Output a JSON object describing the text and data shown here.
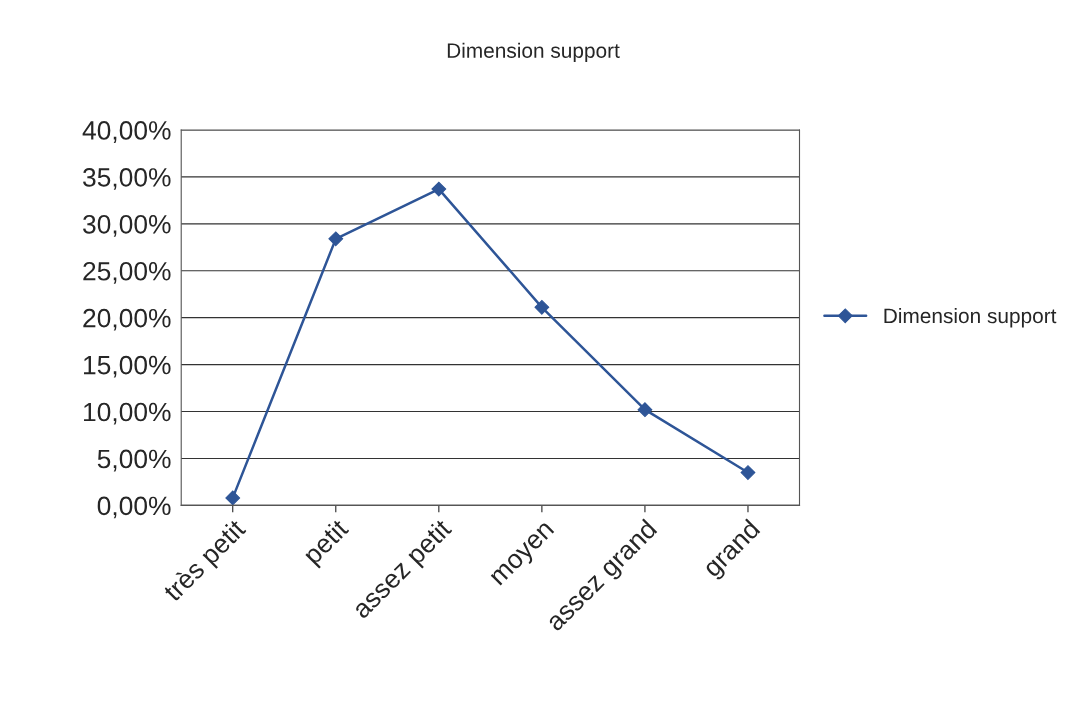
{
  "chart_data": {
    "type": "line",
    "title": "Dimension support",
    "categories": [
      "très petit",
      "petit",
      "assez petit",
      "moyen",
      "assez grand",
      "grand"
    ],
    "series": [
      {
        "name": "Dimension support",
        "color": "#2e5597",
        "values": [
          0.8,
          28.4,
          33.7,
          21.1,
          10.2,
          3.5
        ]
      }
    ],
    "ylim": [
      0,
      40
    ],
    "yticks": [
      {
        "value": 0,
        "label": "0,00%"
      },
      {
        "value": 5,
        "label": "5,00%"
      },
      {
        "value": 10,
        "label": "10,00%"
      },
      {
        "value": 15,
        "label": "15,00%"
      },
      {
        "value": 20,
        "label": "20,00%"
      },
      {
        "value": 25,
        "label": "25,00%"
      },
      {
        "value": 30,
        "label": "30,00%"
      },
      {
        "value": 35,
        "label": "35,00%"
      },
      {
        "value": 40,
        "label": "40,00%"
      }
    ],
    "grid": "y",
    "legend": "right",
    "marker": "diamond",
    "line_style": "solid"
  }
}
